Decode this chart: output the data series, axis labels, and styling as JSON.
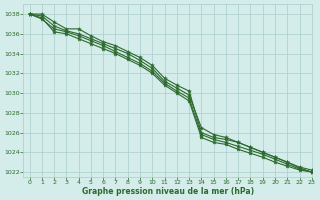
{
  "bg_color": "#d4ecea",
  "grid_color": "#aacccc",
  "line_color": "#2d6a2d",
  "marker_color": "#2d6a2d",
  "xlabel": "Graphe pression niveau de la mer (hPa)",
  "ylim": [
    1021.5,
    1039.0
  ],
  "xlim": [
    -0.5,
    23
  ],
  "yticks": [
    1022,
    1024,
    1026,
    1028,
    1030,
    1032,
    1034,
    1036,
    1038
  ],
  "xticks": [
    0,
    1,
    2,
    3,
    4,
    5,
    6,
    7,
    8,
    9,
    10,
    11,
    12,
    13,
    14,
    15,
    16,
    17,
    18,
    19,
    20,
    21,
    22,
    23
  ],
  "lines": [
    [
      1038.0,
      1038.0,
      1037.2,
      1036.5,
      1036.5,
      1035.8,
      1035.2,
      1034.8,
      1034.2,
      1033.6,
      1032.8,
      1031.5,
      1030.8,
      1030.2,
      1026.0,
      1025.5,
      1025.3,
      1025.0,
      1024.5,
      1024.0,
      1023.5,
      1023.0,
      1022.5,
      1022.2
    ],
    [
      1038.0,
      1037.8,
      1036.8,
      1036.3,
      1036.0,
      1035.5,
      1035.0,
      1034.5,
      1034.0,
      1033.3,
      1032.5,
      1031.2,
      1030.5,
      1029.8,
      1026.5,
      1025.8,
      1025.5,
      1025.0,
      1024.5,
      1024.0,
      1023.5,
      1023.0,
      1022.4,
      1022.0
    ],
    [
      1038.0,
      1037.5,
      1036.5,
      1036.2,
      1035.8,
      1035.3,
      1034.8,
      1034.2,
      1033.6,
      1033.0,
      1032.2,
      1031.0,
      1030.2,
      1029.5,
      1025.8,
      1025.3,
      1025.0,
      1024.6,
      1024.2,
      1023.8,
      1023.3,
      1022.8,
      1022.3,
      1022.0
    ],
    [
      1038.0,
      1037.6,
      1036.2,
      1036.0,
      1035.5,
      1035.0,
      1034.5,
      1034.0,
      1033.4,
      1032.8,
      1032.0,
      1030.8,
      1030.0,
      1029.2,
      1025.5,
      1025.0,
      1024.8,
      1024.3,
      1023.9,
      1023.5,
      1023.0,
      1022.6,
      1022.2,
      1022.0
    ]
  ]
}
